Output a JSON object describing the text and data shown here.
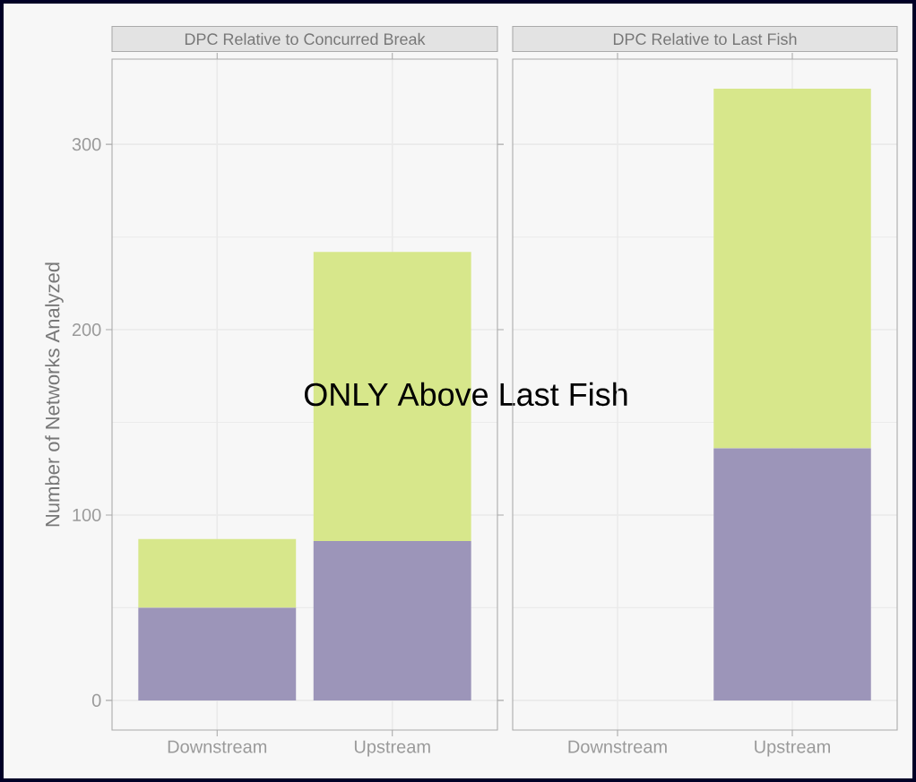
{
  "chart_data": [
    {
      "type": "bar",
      "title": "DPC Relative to Concurred Break",
      "ylabel": "Number of Networks Analyzed",
      "categories": [
        "Downstream",
        "Upstream"
      ],
      "stacked": true,
      "series": [
        {
          "color": "#9c95b9",
          "values": [
            50,
            86
          ]
        },
        {
          "color": "#d7e78b",
          "values": [
            37,
            156
          ]
        }
      ],
      "ylim": [
        -16,
        346
      ],
      "yticks": [
        0,
        {
          "value": 50,
          "label": null
        },
        100,
        {
          "value": 150,
          "label": null
        },
        200,
        {
          "value": 250,
          "label": null
        },
        300
      ],
      "grid": true,
      "annotations": [
        "ONLY Above Last Fish"
      ]
    },
    {
      "type": "bar",
      "title": "DPC Relative to Last Fish",
      "categories": [
        "Downstream",
        "Upstream"
      ],
      "stacked": true,
      "series": [
        {
          "color": "#9c95b9",
          "values": [
            null,
            136
          ]
        },
        {
          "color": "#d7e78b",
          "values": [
            null,
            194
          ]
        }
      ],
      "ylim": [
        -16,
        346
      ],
      "yticks": [
        0,
        {
          "value": 50,
          "label": null
        },
        100,
        {
          "value": 150,
          "label": null
        },
        200,
        {
          "value": 250,
          "label": null
        },
        300
      ],
      "grid": true,
      "tick_labels": "x"
    }
  ]
}
